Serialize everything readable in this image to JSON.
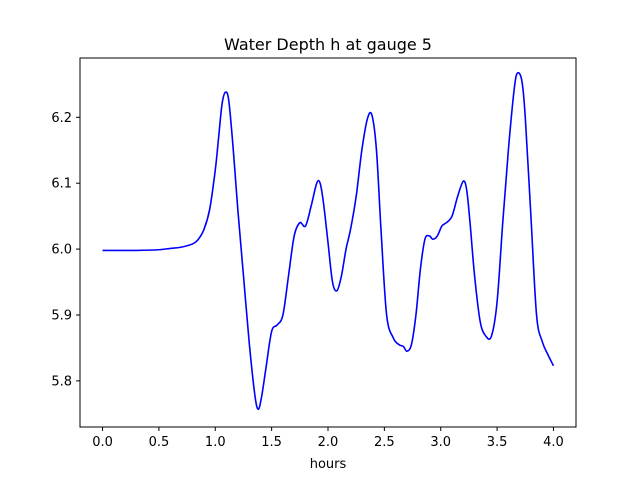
{
  "chart_data": {
    "type": "line",
    "title": "Water Depth h at gauge 5",
    "xlabel": "hours",
    "ylabel": "",
    "xlim": [
      -0.2,
      4.2
    ],
    "ylim": [
      5.73,
      6.29
    ],
    "x_ticks": [
      0.0,
      0.5,
      1.0,
      1.5,
      2.0,
      2.5,
      3.0,
      3.5,
      4.0
    ],
    "x_tick_labels": [
      "0.0",
      "0.5",
      "1.0",
      "1.5",
      "2.0",
      "2.5",
      "3.0",
      "3.5",
      "4.0"
    ],
    "y_ticks": [
      5.8,
      5.9,
      6.0,
      6.1,
      6.2
    ],
    "y_tick_labels": [
      "5.8",
      "5.9",
      "6.0",
      "6.1",
      "6.2"
    ],
    "grid": false,
    "series": [
      {
        "color": "#0000ff",
        "x": [
          0.0,
          0.3,
          0.5,
          0.6,
          0.7,
          0.8,
          0.85,
          0.9,
          0.95,
          1.0,
          1.03,
          1.06,
          1.09,
          1.12,
          1.16,
          1.2,
          1.25,
          1.3,
          1.35,
          1.38,
          1.41,
          1.45,
          1.5,
          1.55,
          1.6,
          1.65,
          1.7,
          1.75,
          1.8,
          1.85,
          1.9,
          1.93,
          1.96,
          2.0,
          2.04,
          2.08,
          2.12,
          2.16,
          2.2,
          2.25,
          2.3,
          2.35,
          2.39,
          2.43,
          2.47,
          2.52,
          2.58,
          2.63,
          2.67,
          2.7,
          2.74,
          2.78,
          2.82,
          2.86,
          2.9,
          2.93,
          2.97,
          3.01,
          3.05,
          3.1,
          3.15,
          3.2,
          3.23,
          3.26,
          3.3,
          3.35,
          3.4,
          3.45,
          3.5,
          3.55,
          3.6,
          3.65,
          3.68,
          3.72,
          3.75,
          3.8,
          3.85,
          3.9,
          3.95,
          4.0
        ],
        "y": [
          5.998,
          5.998,
          5.999,
          6.001,
          6.003,
          6.008,
          6.015,
          6.03,
          6.06,
          6.12,
          6.17,
          6.22,
          6.238,
          6.225,
          6.15,
          6.06,
          5.96,
          5.86,
          5.78,
          5.757,
          5.775,
          5.82,
          5.875,
          5.885,
          5.9,
          5.96,
          6.02,
          6.04,
          6.035,
          6.065,
          6.1,
          6.1,
          6.07,
          6.01,
          5.95,
          5.937,
          5.96,
          6.0,
          6.03,
          6.08,
          6.15,
          6.198,
          6.203,
          6.15,
          6.03,
          5.9,
          5.865,
          5.855,
          5.852,
          5.845,
          5.855,
          5.9,
          5.97,
          6.015,
          6.02,
          6.015,
          6.02,
          6.035,
          6.04,
          6.05,
          6.08,
          6.103,
          6.09,
          6.04,
          5.96,
          5.89,
          5.868,
          5.868,
          5.92,
          6.04,
          6.15,
          6.24,
          6.267,
          6.255,
          6.2,
          6.05,
          5.9,
          5.86,
          5.84,
          5.823
        ]
      }
    ]
  }
}
